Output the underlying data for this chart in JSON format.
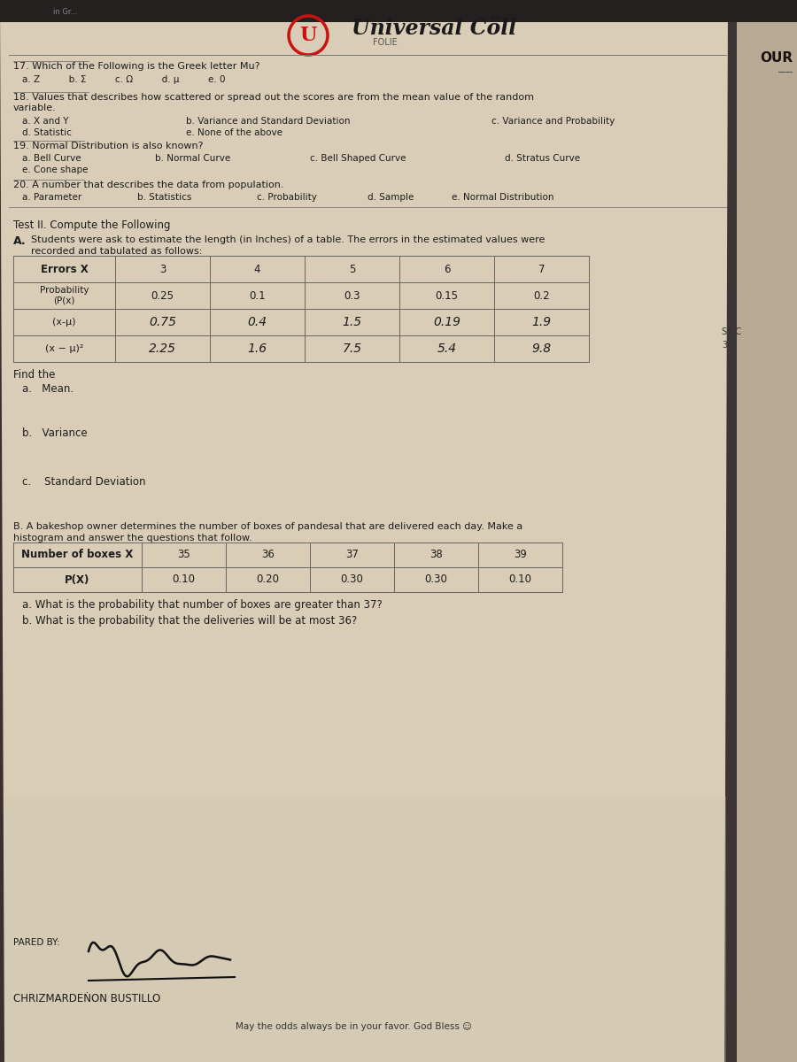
{
  "bg_color": "#3a3030",
  "paper_color": "#d9cdb8",
  "paper_color2": "#cfc4ae",
  "title_text": "Universal Cöll",
  "subtitle_folie": "FOLIE",
  "q17_line": "17. Which of the Following is the Greek letter Mu?",
  "q17_opts_line": "a. Z          b. Σ          c. Ω          d. μ          e. 0",
  "q18_line1": "18. Values that describes how scattered or spread out the scores are from the mean value of the random",
  "q18_line2": "variable.",
  "q18_a": "a. X and Y",
  "q18_b": "b. Variance and Standard Deviation",
  "q18_c": "c. Variance and Probability",
  "q18_d": "d. Statistic",
  "q18_e": "e. None of the above",
  "q19_line": "19. Normal Distribution is also known?",
  "q19_a": "a. Bell Curve",
  "q19_e": "e. Cone shape",
  "q19_b": "b. Normal Curve",
  "q19_c": "c. Bell Shaped Curve",
  "q19_d": "d. Stratus Curve",
  "q20_line": "20. A number that describes the data from population.",
  "q20_a": "a. Parameter",
  "q20_b": "b. Statistics",
  "q20_c": "c. Probability",
  "q20_d": "d. Sample",
  "q20_e": "e. Normal Distribution",
  "test2_hdr": "Test II. Compute the Following",
  "secA_intro1": "Students were ask to estimate the length (in Inches) of a table. The errors in the estimated values were",
  "secA_intro2": "recorded and tabulated as follows:",
  "t1_headers": [
    "Errors X",
    "3",
    "4",
    "5",
    "6",
    "7"
  ],
  "t1_r1_lbl": "Probability\n(P(x)",
  "t1_r1": [
    "0.25",
    "0.1",
    "0.3",
    "0.15",
    "0.2"
  ],
  "t1_r2_lbl": "(x-μ)",
  "t1_r2": [
    "0.75",
    "0.4",
    "1.5",
    "0.19",
    "1.9"
  ],
  "t1_r3_lbl": "(x − μ)²",
  "t1_r3": [
    "2.25",
    "1.6",
    "7.5",
    "5.4",
    "9.8"
  ],
  "find": "Find the",
  "find_a": "a.   Mean.",
  "find_b": "b.   Variance",
  "find_c": "c.    Standard Deviation",
  "secB_intro1": "B. A bakeshop owner determines the number of boxes of pandesal that are delivered each day. Make a",
  "secB_intro2": "histogram and answer the questions that follow.",
  "t2_headers": [
    "Number of boxes X",
    "35",
    "36",
    "37",
    "38",
    "39"
  ],
  "t2_r1_lbl": "P(X)",
  "t2_r1": [
    "0.10",
    "0.20",
    "0.30",
    "0.30",
    "0.10"
  ],
  "qa": "a. What is the probability that number of boxes are greater than 37?",
  "qb": "b. What is the probability that the deliveries will be at most 36?",
  "prep": "PARED BY:",
  "name_line": "CHRIZMARDEṄON BUSTILLO",
  "footer": "May the odds always be in your favor. God Bless ☺",
  "tc": "#1c1c1c",
  "lc": "#666666",
  "right_page_color": "#c8bca8",
  "sidebar_color": "#2a2020"
}
